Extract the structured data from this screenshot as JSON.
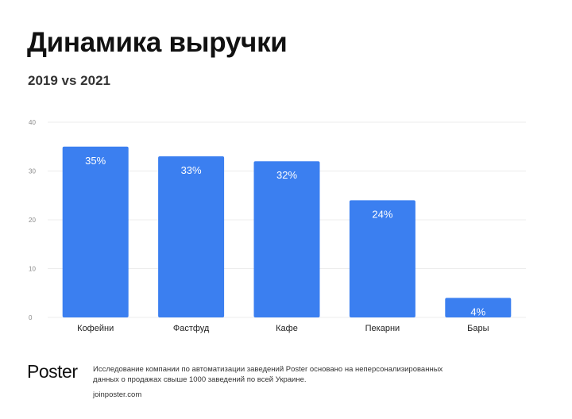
{
  "header": {
    "title": "Динамика выручки",
    "subtitle": "2019 vs 2021"
  },
  "chart_data": {
    "type": "bar",
    "categories": [
      "Кофейни",
      "Фастфуд",
      "Кафе",
      "Пекарни",
      "Бары"
    ],
    "values": [
      35,
      33,
      32,
      24,
      4
    ],
    "data_labels": [
      "35%",
      "33%",
      "32%",
      "24%",
      "4%"
    ],
    "ylim": [
      0,
      40
    ],
    "yticks": [
      0,
      10,
      20,
      30,
      40
    ],
    "grid": true,
    "legend": "none",
    "bar_color": "#3b7ff0"
  },
  "footer": {
    "logo": "Poster",
    "note": "Исследование компании по автоматизации заведений Poster основано на неперсонализированных данных о продажах свыше 1000 заведений по всей Украине.",
    "url": "joinposter.com"
  }
}
